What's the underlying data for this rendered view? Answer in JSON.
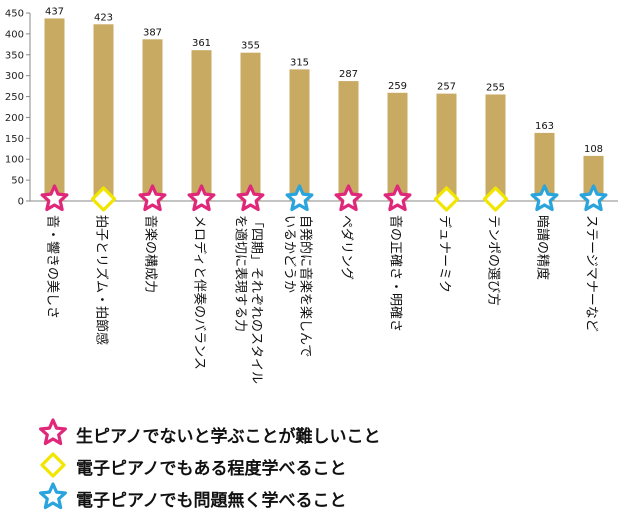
{
  "chart_data": {
    "type": "bar",
    "title": "",
    "xlabel": "",
    "ylabel": "",
    "ylim": [
      0,
      450
    ],
    "yticks": [
      0,
      50,
      100,
      150,
      200,
      250,
      300,
      350,
      400,
      450
    ],
    "grid": false,
    "categories": [
      "音・響きの美しさ",
      "拍子とリズム・拍節感",
      "音楽の構成力",
      "メロディと伴奏のバランス",
      "「四期」それぞれのスタイルを適切に表現する力",
      "自発的に音楽を楽しんでいるかどうか",
      "ペダリング",
      "音の正確さ・明確さ",
      "デュナーミク",
      "テンポの選び方",
      "暗譜の精度",
      "ステージマナーなど"
    ],
    "category_lines": [
      [
        "音・響きの美しさ"
      ],
      [
        "拍子とリズム・拍節感"
      ],
      [
        "音楽の構成力"
      ],
      [
        "メロディと伴奏のバランス"
      ],
      [
        "「四期」それぞれのスタイル",
        "を適切に表現する力"
      ],
      [
        "自発的に音楽を楽しんで",
        "いるかどうか"
      ],
      [
        "ペダリング"
      ],
      [
        "音の正確さ・明確さ"
      ],
      [
        "デュナーミク"
      ],
      [
        "テンポの選び方"
      ],
      [
        "暗譜の精度"
      ],
      [
        "ステージマナーなど"
      ]
    ],
    "values": [
      437,
      423,
      387,
      361,
      355,
      315,
      287,
      259,
      257,
      255,
      163,
      108
    ],
    "bar_color": "#c8aa62",
    "markers": [
      "pink-star",
      "yellow-diamond",
      "pink-star",
      "pink-star",
      "pink-star",
      "blue-star",
      "pink-star",
      "pink-star",
      "yellow-diamond",
      "yellow-diamond",
      "blue-star",
      "blue-star"
    ]
  },
  "marker_colors": {
    "pink-star": "#e0287a",
    "yellow-diamond": "#f2e600",
    "blue-star": "#2aa4dc"
  },
  "legend": [
    {
      "marker": "pink-star",
      "label": "生ピアノでないと学ぶことが難しいこと"
    },
    {
      "marker": "yellow-diamond",
      "label": "電子ピアノでもある程度学べること"
    },
    {
      "marker": "blue-star",
      "label": "電子ピアノでも問題無く学べること"
    }
  ]
}
